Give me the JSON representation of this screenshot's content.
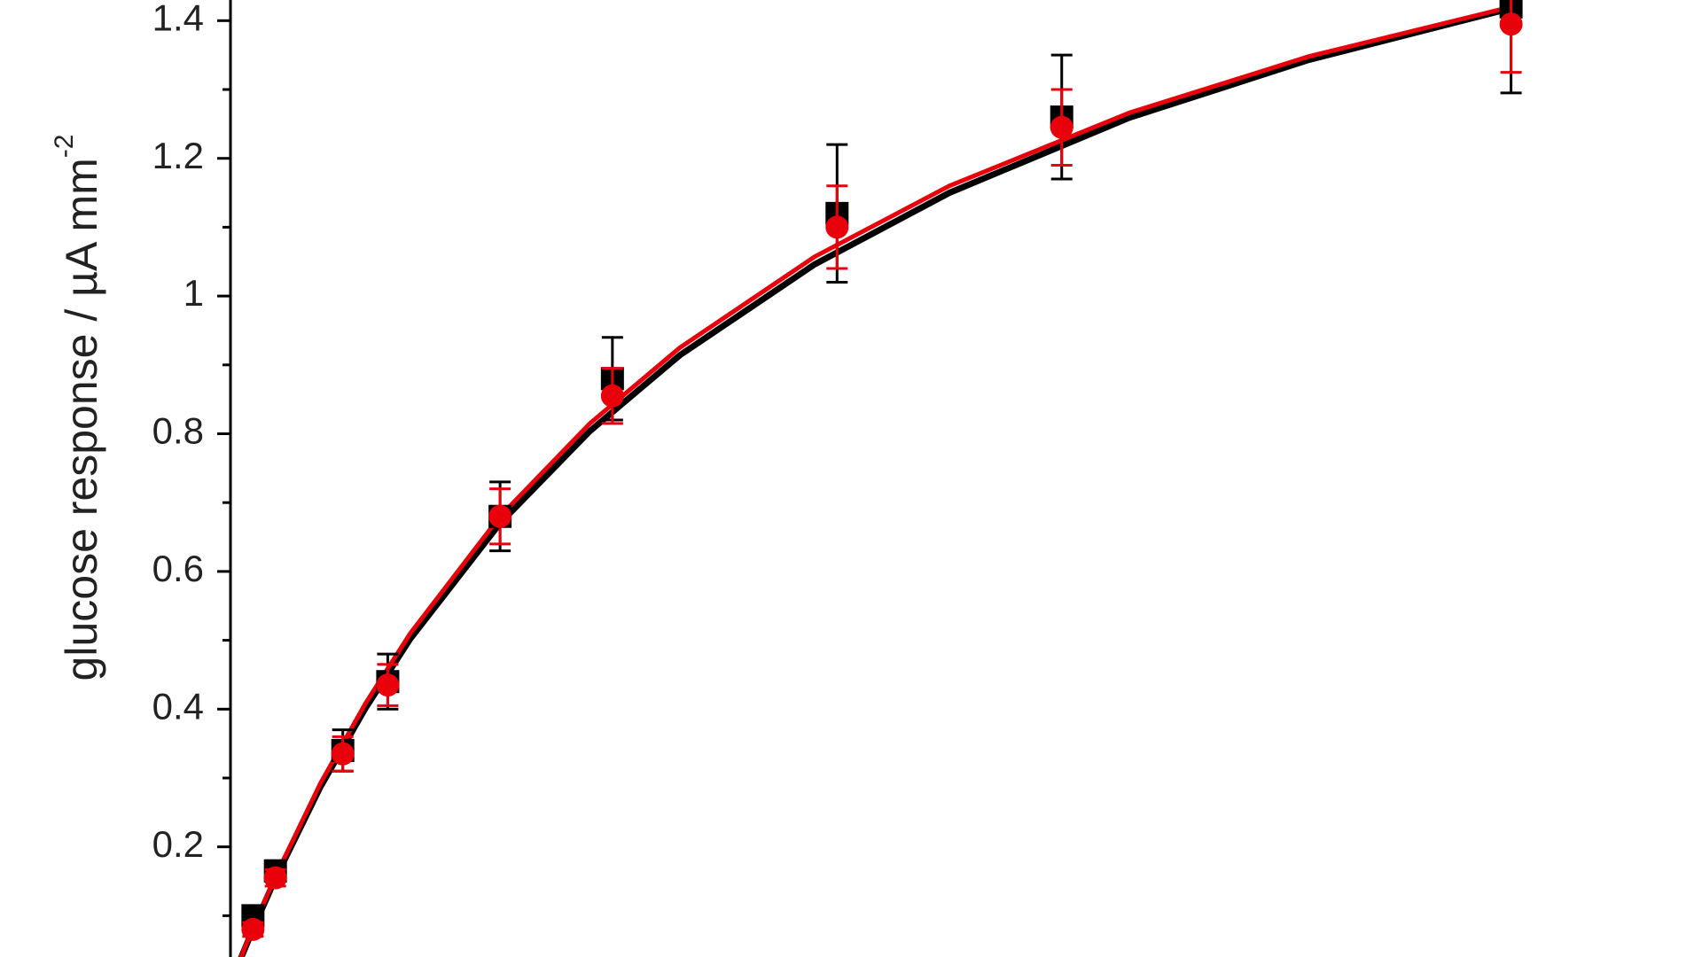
{
  "chart_data": {
    "type": "scatter",
    "y_label": "glucose response / µA mm",
    "y_label_sup": "-2",
    "x": [
      0.5,
      1,
      2.5,
      3.5,
      6,
      8.5,
      13.5,
      18.5,
      28.5
    ],
    "xlim": [
      0,
      32
    ],
    "ylim": [
      0.04,
      1.43
    ],
    "yticks": [
      0.2,
      0.4,
      0.6,
      0.8,
      1.0,
      1.2,
      1.4
    ],
    "yminorticks": [
      0.1,
      0.3,
      0.5,
      0.7,
      0.9,
      1.1,
      1.3
    ],
    "fit_x": [
      0.2,
      0.5,
      1,
      2,
      3,
      4,
      6,
      8,
      10,
      13,
      16,
      20,
      24,
      28.5
    ],
    "series": [
      {
        "color": "#000000",
        "marker": "square",
        "values": [
          0.1,
          0.165,
          0.34,
          0.44,
          0.68,
          0.88,
          1.12,
          1.26,
          1.42
        ],
        "errors": [
          0.01,
          0.015,
          0.03,
          0.04,
          0.05,
          0.06,
          0.1,
          0.09,
          0.125
        ],
        "fit_values": [
          0.033,
          0.08,
          0.154,
          0.287,
          0.401,
          0.502,
          0.67,
          0.804,
          0.914,
          1.046,
          1.15,
          1.259,
          1.343,
          1.418
        ]
      },
      {
        "color": "#e8000b",
        "marker": "circle",
        "values": [
          0.08,
          0.155,
          0.335,
          0.435,
          0.68,
          0.855,
          1.1,
          1.245,
          1.395
        ],
        "errors": [
          0.01,
          0.012,
          0.025,
          0.03,
          0.04,
          0.04,
          0.06,
          0.055,
          0.07
        ],
        "fit_values": [
          0.034,
          0.082,
          0.157,
          0.292,
          0.408,
          0.51,
          0.68,
          0.815,
          0.925,
          1.057,
          1.16,
          1.266,
          1.348,
          1.42
        ]
      }
    ]
  }
}
